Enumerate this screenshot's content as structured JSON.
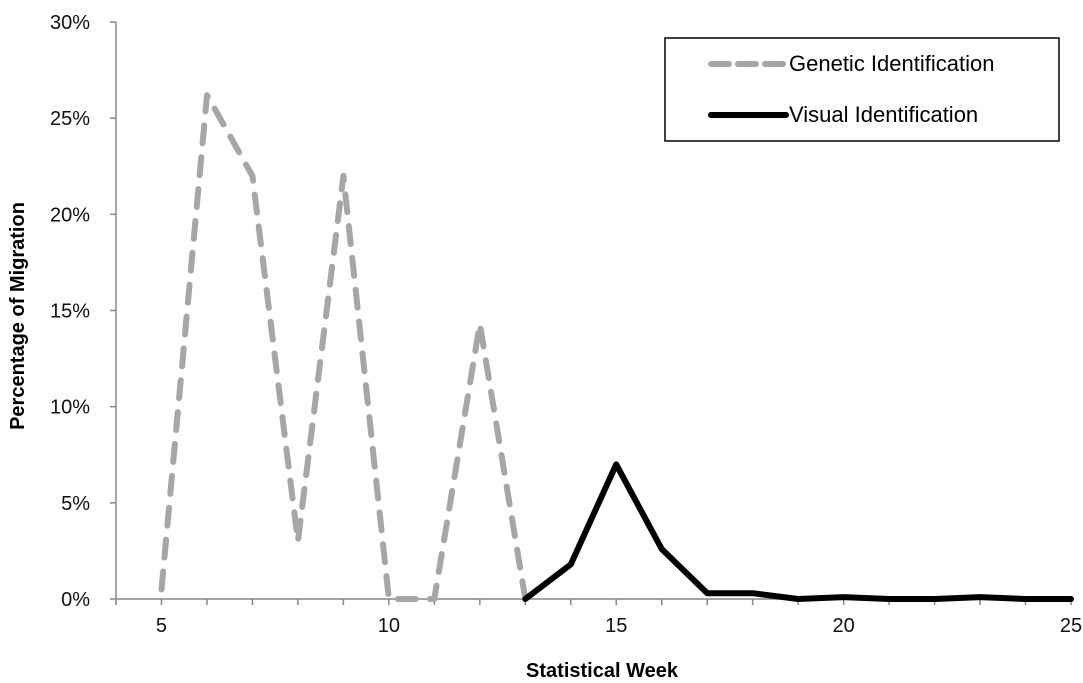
{
  "chart_data": {
    "type": "line",
    "xlabel": "Statistical Week",
    "ylabel": "Percentage of Migration",
    "xlim": [
      4,
      25
    ],
    "ylim": [
      0,
      30
    ],
    "x_ticks": [
      5,
      10,
      15,
      20,
      25
    ],
    "x_tick_labels": [
      "5",
      "10",
      "15",
      "20",
      "25"
    ],
    "y_ticks": [
      0,
      5,
      10,
      15,
      20,
      25,
      30
    ],
    "y_tick_labels": [
      "0%",
      "5%",
      "10%",
      "15%",
      "20%",
      "25%",
      "30%"
    ],
    "grid": false,
    "legend_position": "top-right",
    "series": [
      {
        "name": "Genetic Identification",
        "style": "dashed",
        "color": "#a6a6a6",
        "x": [
          5,
          6,
          7,
          8,
          9,
          10,
          11,
          12,
          13
        ],
        "y": [
          0.5,
          26.2,
          22.0,
          3.0,
          22.0,
          0.0,
          0.0,
          14.3,
          0.0
        ]
      },
      {
        "name": "Visual Identification",
        "style": "solid",
        "color": "#000000",
        "x": [
          13,
          14,
          15,
          16,
          17,
          18,
          19,
          20,
          21,
          22,
          23,
          24,
          25
        ],
        "y": [
          0.0,
          1.8,
          7.0,
          2.6,
          0.3,
          0.3,
          0.0,
          0.1,
          0.0,
          0.0,
          0.1,
          0.0,
          0.0
        ]
      }
    ]
  }
}
